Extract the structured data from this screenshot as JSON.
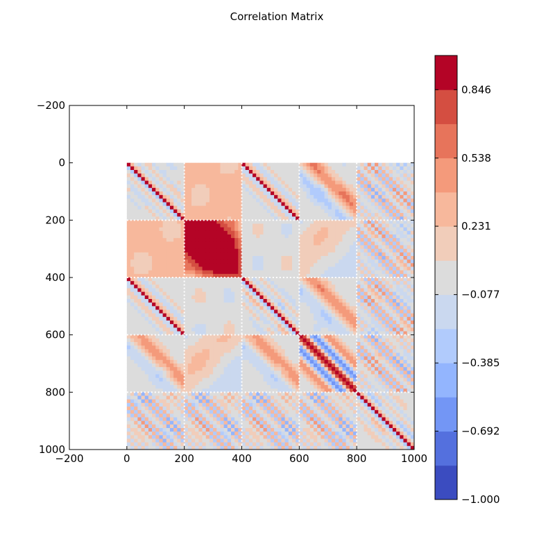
{
  "chart_data": {
    "type": "heatmap",
    "title": "Correlation Matrix",
    "xlabel": "",
    "ylabel": "",
    "xlim": [
      -200,
      1000
    ],
    "ylim": [
      1000,
      -200
    ],
    "x_ticks": [
      "−200",
      "0",
      "200",
      "400",
      "600",
      "800",
      "1000"
    ],
    "y_ticks": [
      "−200",
      "0",
      "200",
      "400",
      "600",
      "800",
      "1000"
    ],
    "x_tick_values": [
      -200,
      0,
      200,
      400,
      600,
      800,
      1000
    ],
    "y_tick_values": [
      -200,
      0,
      200,
      400,
      600,
      800,
      1000
    ],
    "matrix_extent": [
      0,
      1000
    ],
    "block_boundaries": [
      200,
      400,
      600,
      800
    ],
    "colormap": "coolwarm",
    "colorbar": {
      "range": [
        -1.0,
        1.0
      ],
      "levels": 13,
      "tick_labels": [
        "0.846",
        "0.538",
        "0.231",
        "−0.077",
        "−0.385",
        "−0.692",
        "−1.000"
      ],
      "tick_values": [
        0.846,
        0.538,
        0.231,
        -0.077,
        -0.385,
        -0.692,
        -1.0
      ],
      "colors": [
        "#3b4cc0",
        "#5470de",
        "#7396f5",
        "#93b5fe",
        "#b1cbfc",
        "#cad8ef",
        "#dcdcdc",
        "#f1cdba",
        "#f7b89c",
        "#f49a7b",
        "#e7745b",
        "#d44e41",
        "#b40426"
      ]
    }
  }
}
